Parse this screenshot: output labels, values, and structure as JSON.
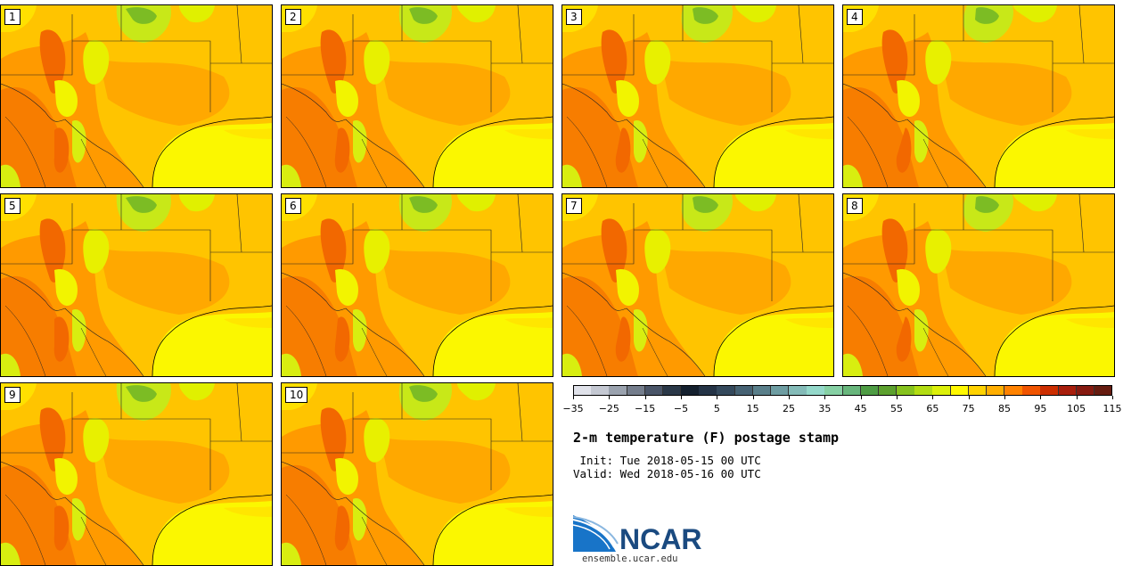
{
  "panels": [
    {
      "label": "1"
    },
    {
      "label": "2"
    },
    {
      "label": "3"
    },
    {
      "label": "4"
    },
    {
      "label": "5"
    },
    {
      "label": "6"
    },
    {
      "label": "7"
    },
    {
      "label": "8"
    },
    {
      "label": "9"
    },
    {
      "label": "10"
    }
  ],
  "colorbar": {
    "ticks": [
      "−35",
      "−25",
      "−15",
      "−5",
      "5",
      "15",
      "25",
      "35",
      "45",
      "55",
      "65",
      "75",
      "85",
      "95",
      "105",
      "115"
    ],
    "min": -35,
    "step": 5,
    "colors": [
      "#e0e2ea",
      "#c4c8d2",
      "#9aa2ae",
      "#747d8c",
      "#4a5568",
      "#2a3848",
      "#14202e",
      "#243346",
      "#34495c",
      "#466273",
      "#5a7f8a",
      "#6e9da2",
      "#84bbb8",
      "#94d8ca",
      "#86d0a4",
      "#68b67c",
      "#4e9c44",
      "#5ca02e",
      "#86c21e",
      "#b2dc12",
      "#dcf00a",
      "#fff800",
      "#ffd200",
      "#ffae00",
      "#ff8200",
      "#f05400",
      "#cc2e00",
      "#a81e0c",
      "#861a10",
      "#661c10"
    ]
  },
  "title": "2-m temperature (F) postage stamp",
  "init_text": " Init: Tue 2018-05-15 00 UTC",
  "valid_text": "Valid: Wed 2018-05-16 00 UTC",
  "logo": {
    "name": "NCAR",
    "url": "ensemble.ucar.edu"
  }
}
